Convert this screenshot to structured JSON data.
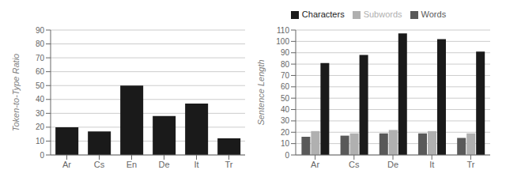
{
  "chart_data": [
    {
      "type": "bar",
      "categories": [
        "Ar",
        "Cs",
        "En",
        "De",
        "It",
        "Tr"
      ],
      "values": [
        20,
        17,
        50,
        28,
        37,
        12
      ],
      "color": "#1a1a1a",
      "ylabel": "Token-to-Type Ratio",
      "ylim": [
        0,
        90
      ],
      "yticks": [
        0,
        10,
        20,
        30,
        40,
        50,
        60,
        70,
        80,
        90
      ],
      "grid": true
    },
    {
      "type": "bar",
      "categories": [
        "Ar",
        "Cs",
        "De",
        "It",
        "Tr"
      ],
      "series": [
        {
          "name": "Words",
          "color": "#595959",
          "values": [
            16,
            17,
            19,
            19,
            15
          ]
        },
        {
          "name": "Subwords",
          "color": "#b0b0b0",
          "values": [
            21,
            19,
            22,
            21,
            19
          ]
        },
        {
          "name": "Characters",
          "color": "#1a1a1a",
          "values": [
            81,
            88,
            107,
            102,
            91
          ]
        }
      ],
      "ylabel": "Sentence Length",
      "ylim": [
        0,
        110
      ],
      "yticks": [
        0,
        10,
        20,
        30,
        40,
        50,
        60,
        70,
        80,
        90,
        100,
        110
      ],
      "grid": true,
      "legend": "top"
    }
  ]
}
